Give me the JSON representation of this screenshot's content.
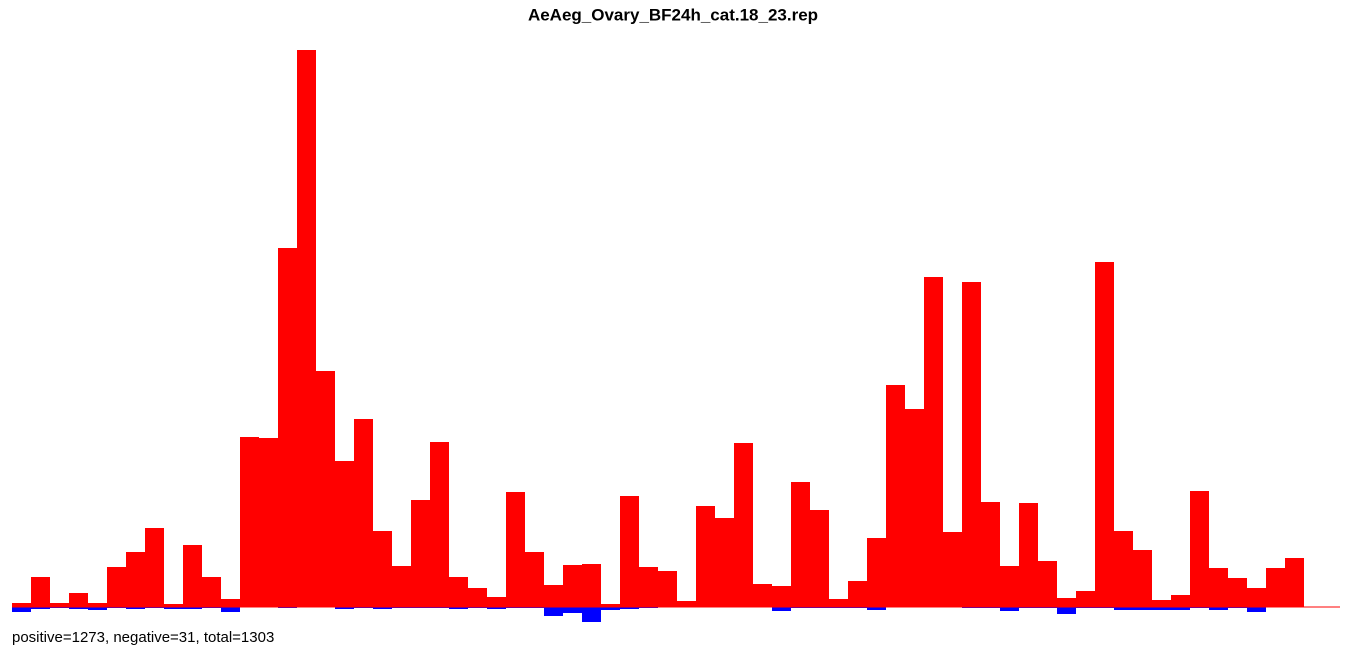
{
  "chart_data": {
    "type": "bar",
    "title": "AeAeg_Ovary_BF24h_cat.18_23.rep",
    "footer": "positive=1273, negative=31, total=1303",
    "series": [
      {
        "name": "positive",
        "color": "#ff0000",
        "values": [
          4,
          30,
          4,
          14,
          4,
          40,
          55,
          79,
          3,
          62,
          30,
          8,
          170,
          169,
          359,
          557,
          236,
          146,
          188,
          76,
          41,
          107,
          165,
          30,
          19,
          10,
          115,
          55,
          22,
          42,
          43,
          3,
          111,
          40,
          36,
          6,
          101,
          89,
          164,
          23,
          21,
          125,
          97,
          8,
          26,
          69,
          222,
          198,
          330,
          75,
          325,
          105,
          41,
          104,
          46,
          9,
          16,
          345,
          76,
          57,
          7,
          12,
          116,
          39,
          29,
          19,
          39,
          49
        ]
      },
      {
        "name": "negative",
        "color": "#0000ff",
        "values": [
          -5,
          -2,
          -1,
          -2,
          -3,
          -1,
          -2,
          -1,
          -2,
          -2,
          -1,
          -5,
          0,
          0,
          -1,
          0,
          0,
          -2,
          -1,
          -2,
          -1,
          -1,
          -1,
          -2,
          -1,
          -2,
          -1,
          -1,
          -9,
          -6,
          -15,
          -3,
          -2,
          -1,
          0,
          0,
          0,
          0,
          0,
          0,
          -4,
          -1,
          -1,
          -1,
          -1,
          -3,
          0,
          0,
          0,
          0,
          -1,
          -1,
          -4,
          -1,
          -1,
          -7,
          -1,
          -1,
          -3,
          -3,
          -3,
          -3,
          -1,
          -3,
          -1,
          -5,
          0,
          0
        ]
      }
    ]
  }
}
